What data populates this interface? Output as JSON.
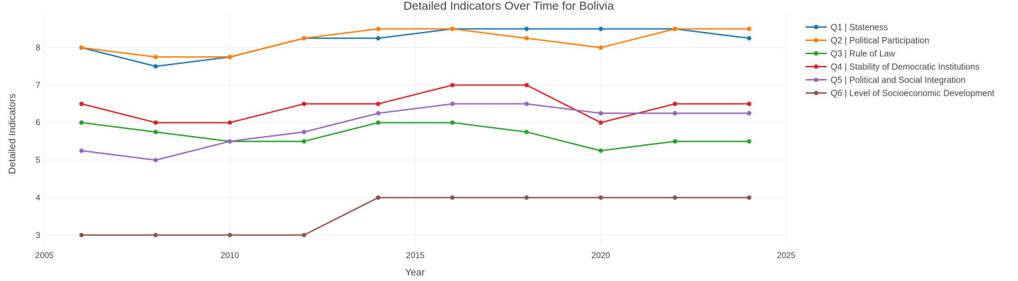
{
  "chart_data": {
    "type": "line",
    "title": "Detailed Indicators Over Time for Bolivia",
    "xlabel": "Year",
    "ylabel": "Detailed Indicators",
    "x": [
      2006,
      2008,
      2010,
      2012,
      2014,
      2016,
      2018,
      2020,
      2022,
      2024
    ],
    "xlim": [
      2005,
      2025
    ],
    "ylim": [
      2.7,
      8.9
    ],
    "xticks": [
      2005,
      2010,
      2015,
      2020,
      2025
    ],
    "yticks": [
      3,
      4,
      5,
      6,
      7,
      8
    ],
    "grid": true,
    "legend_position": "top-right",
    "series": [
      {
        "name": "Q1 | Stateness",
        "color": "#1f77b4",
        "values": [
          8.0,
          7.5,
          7.75,
          8.25,
          8.25,
          8.5,
          8.5,
          8.5,
          8.5,
          8.25
        ]
      },
      {
        "name": "Q2 | Political Participation",
        "color": "#ff7f0e",
        "values": [
          8.0,
          7.75,
          7.75,
          8.25,
          8.5,
          8.5,
          8.25,
          8.0,
          8.5,
          8.5
        ]
      },
      {
        "name": "Q3 | Rule of Law",
        "color": "#2ca02c",
        "values": [
          6.0,
          5.75,
          5.5,
          5.5,
          6.0,
          6.0,
          5.75,
          5.25,
          5.5,
          5.5
        ]
      },
      {
        "name": "Q4 | Stability of Democratic Institutions",
        "color": "#d62728",
        "values": [
          6.5,
          6.0,
          6.0,
          6.5,
          6.5,
          7.0,
          7.0,
          6.0,
          6.5,
          6.5
        ]
      },
      {
        "name": "Q5 | Political and Social Integration",
        "color": "#9467bd",
        "values": [
          5.25,
          5.0,
          5.5,
          5.75,
          6.25,
          6.5,
          6.5,
          6.25,
          6.25,
          6.25
        ]
      },
      {
        "name": "Q6 | Level of Socioeconomic Development",
        "color": "#8c564b",
        "values": [
          3.0,
          3.0,
          3.0,
          3.0,
          4.0,
          4.0,
          4.0,
          4.0,
          4.0,
          4.0
        ]
      }
    ]
  }
}
